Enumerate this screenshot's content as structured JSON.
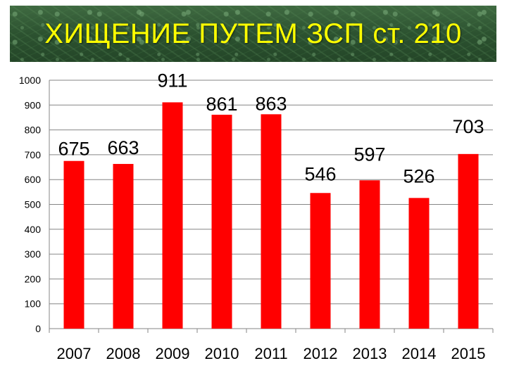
{
  "title": "ХИЩЕНИЕ ПУТЕМ ЗСП ст. 210",
  "colors": {
    "bar": "#ff0000",
    "grid": "#868686",
    "title_text": "#ffff00",
    "banner": "#2f5533"
  },
  "chart_data": {
    "type": "bar",
    "title": "ХИЩЕНИЕ ПУТЕМ ЗСП ст. 210",
    "categories": [
      "2007",
      "2008",
      "2009",
      "2010",
      "2011",
      "2012",
      "2013",
      "2014",
      "2015"
    ],
    "values": [
      675,
      663,
      911,
      861,
      863,
      546,
      597,
      526,
      703
    ],
    "data_labels": [
      "675",
      "663",
      "911",
      "861",
      "863",
      "546",
      "597",
      "526",
      "703"
    ],
    "yticks": [
      "0",
      "100",
      "200",
      "300",
      "400",
      "500",
      "600",
      "700",
      "800",
      "900",
      "1000"
    ],
    "ylim": [
      0,
      1000
    ],
    "grid": true,
    "legend": "none",
    "xlabel": "",
    "ylabel": ""
  }
}
